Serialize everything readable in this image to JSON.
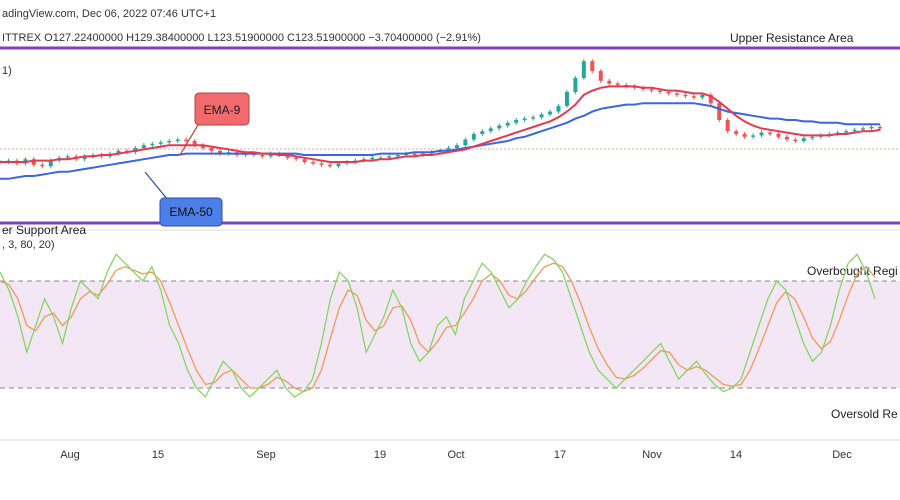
{
  "header": {
    "line1": "adingView.com, Dec 06, 2022 07:46 UTC+1",
    "line2": "ITTREX  O127.22400000  H129.38400000  L123.51900000  C123.51900000  −3.70400000 (−2.91%)",
    "paren": "1)"
  },
  "price_panel": {
    "resistance_label": "Upper Resistance Area",
    "support_label": "er Support Area",
    "ema9_label": "EMA-9",
    "ema50_label": "EMA-50",
    "resistance_color": "#7e3fbf",
    "support_color": "#7e3fbf"
  },
  "osc_panel": {
    "settings": ", 3, 80, 20)",
    "overbought_label": "Overbought Regi",
    "oversold_label": "Oversold Re",
    "band_color": "#f3e6f5"
  },
  "colors": {
    "up": "#26a69a",
    "down": "#ef5350",
    "ema9": "#e53950",
    "ema50": "#3a66e0",
    "k": "#7cd65a",
    "d": "#f09a5a",
    "ema9_callout": "#f06a6e",
    "ema50_callout": "#4d7fe8"
  },
  "x_axis_labels": [
    "Aug",
    "15",
    "Sep",
    "19",
    "Oct",
    "17",
    "Nov",
    "14",
    "Dec"
  ],
  "chart_data": [
    {
      "type": "candlestick",
      "title": "",
      "ohlc_last": {
        "open": 127.224,
        "high": 129.384,
        "low": 123.519,
        "close": 123.519,
        "change": -3.704,
        "change_pct": -2.91
      },
      "x_axis_ticks": [
        "Aug",
        "15",
        "Sep",
        "19",
        "Oct",
        "17",
        "Nov",
        "14",
        "Dec"
      ],
      "close_series": [
        100,
        101,
        99,
        102,
        98,
        97,
        101,
        103,
        104,
        102,
        104,
        105,
        104,
        106,
        108,
        107,
        110,
        112,
        113,
        114,
        115,
        116,
        115,
        112,
        110,
        108,
        106,
        107,
        105,
        106,
        105,
        104,
        106,
        105,
        103,
        102,
        100,
        99,
        98,
        97,
        99,
        100,
        101,
        102,
        103,
        103,
        104,
        105,
        106,
        105,
        106,
        107,
        108,
        110,
        112,
        116,
        120,
        122,
        124,
        126,
        128,
        130,
        131,
        132,
        134,
        136,
        140,
        150,
        160,
        172,
        165,
        158,
        156,
        155,
        154,
        153,
        152,
        151,
        150,
        149,
        148,
        147,
        146,
        148,
        142,
        130,
        122,
        120,
        118,
        119,
        121,
        120,
        118,
        116,
        115,
        117,
        118,
        119,
        120,
        121,
        122,
        123,
        124,
        125,
        124
      ],
      "ema9_series": [
        100,
        100,
        100,
        100,
        101,
        101,
        101,
        102,
        102,
        103,
        104,
        104,
        105,
        105,
        106,
        107,
        108,
        109,
        110,
        111,
        112,
        112,
        112,
        112,
        112,
        111,
        110,
        109,
        108,
        107,
        107,
        106,
        106,
        105,
        105,
        104,
        103,
        102,
        101,
        100,
        100,
        100,
        100,
        101,
        101,
        102,
        102,
        103,
        104,
        104,
        105,
        105,
        106,
        107,
        108,
        109,
        111,
        113,
        115,
        117,
        119,
        121,
        123,
        125,
        127,
        129,
        132,
        136,
        141,
        148,
        151,
        153,
        154,
        154,
        154,
        154,
        153,
        153,
        152,
        151,
        151,
        150,
        149,
        149,
        147,
        143,
        138,
        133,
        129,
        126,
        124,
        123,
        122,
        121,
        120,
        119,
        119,
        119,
        119,
        120,
        120,
        121,
        122,
        122,
        123
      ],
      "ema50_series": [
        88,
        88,
        89,
        90,
        90,
        91,
        92,
        93,
        93,
        94,
        95,
        96,
        97,
        98,
        99,
        100,
        101,
        102,
        103,
        104,
        105,
        105,
        106,
        106,
        106,
        106,
        106,
        106,
        106,
        106,
        106,
        106,
        106,
        106,
        106,
        106,
        105,
        105,
        105,
        105,
        105,
        105,
        105,
        105,
        105,
        106,
        106,
        106,
        106,
        107,
        107,
        107,
        108,
        108,
        109,
        110,
        111,
        112,
        113,
        114,
        115,
        117,
        118,
        120,
        122,
        124,
        126,
        128,
        131,
        133,
        136,
        138,
        139,
        140,
        141,
        141,
        142,
        142,
        142,
        142,
        142,
        142,
        142,
        141,
        140,
        138,
        136,
        135,
        134,
        133,
        132,
        131,
        131,
        130,
        130,
        129,
        129,
        128,
        128,
        128,
        127,
        127,
        127,
        127,
        127
      ],
      "annotations": [
        "Upper Resistance Area",
        "er Support Area",
        "EMA-9",
        "EMA-50"
      ]
    },
    {
      "type": "line",
      "title": "",
      "series": [
        {
          "values": [
            85,
            75,
            60,
            40,
            55,
            70,
            60,
            45,
            65,
            80,
            75,
            70,
            85,
            95,
            90,
            85,
            80,
            88,
            75,
            55,
            45,
            30,
            20,
            15,
            25,
            35,
            30,
            20,
            15,
            20,
            25,
            30,
            20,
            15,
            18,
            25,
            45,
            70,
            85,
            80,
            65,
            40,
            50,
            60,
            75,
            65,
            45,
            35,
            40,
            55,
            60,
            50,
            70,
            80,
            90,
            85,
            75,
            65,
            70,
            80,
            88,
            95,
            92,
            85,
            70,
            55,
            40,
            30,
            25,
            20,
            25,
            30,
            35,
            40,
            45,
            35,
            25,
            30,
            35,
            28,
            22,
            18,
            20,
            25,
            40,
            55,
            70,
            80,
            75,
            60,
            45,
            35,
            40,
            55,
            75,
            90,
            95,
            85,
            70
          ]
        },
        {
          "values": [
            80,
            78,
            70,
            55,
            52,
            60,
            62,
            55,
            60,
            70,
            74,
            72,
            78,
            86,
            88,
            86,
            84,
            85,
            80,
            68,
            55,
            42,
            30,
            22,
            23,
            28,
            30,
            25,
            20,
            20,
            22,
            26,
            24,
            20,
            18,
            20,
            30,
            48,
            65,
            75,
            72,
            58,
            52,
            55,
            65,
            66,
            58,
            45,
            40,
            46,
            54,
            55,
            62,
            70,
            80,
            84,
            80,
            72,
            70,
            75,
            82,
            88,
            90,
            88,
            80,
            68,
            54,
            42,
            33,
            26,
            25,
            27,
            31,
            36,
            41,
            40,
            33,
            30,
            32,
            30,
            26,
            22,
            21,
            22,
            30,
            42,
            55,
            68,
            74,
            70,
            60,
            48,
            42,
            46,
            58,
            72,
            84,
            88,
            82
          ]
        }
      ],
      "ylim": [
        0,
        100
      ],
      "reference_lines": [
        80,
        20
      ],
      "annotations": [
        "Overbought Regi",
        "Oversold Re"
      ]
    }
  ]
}
